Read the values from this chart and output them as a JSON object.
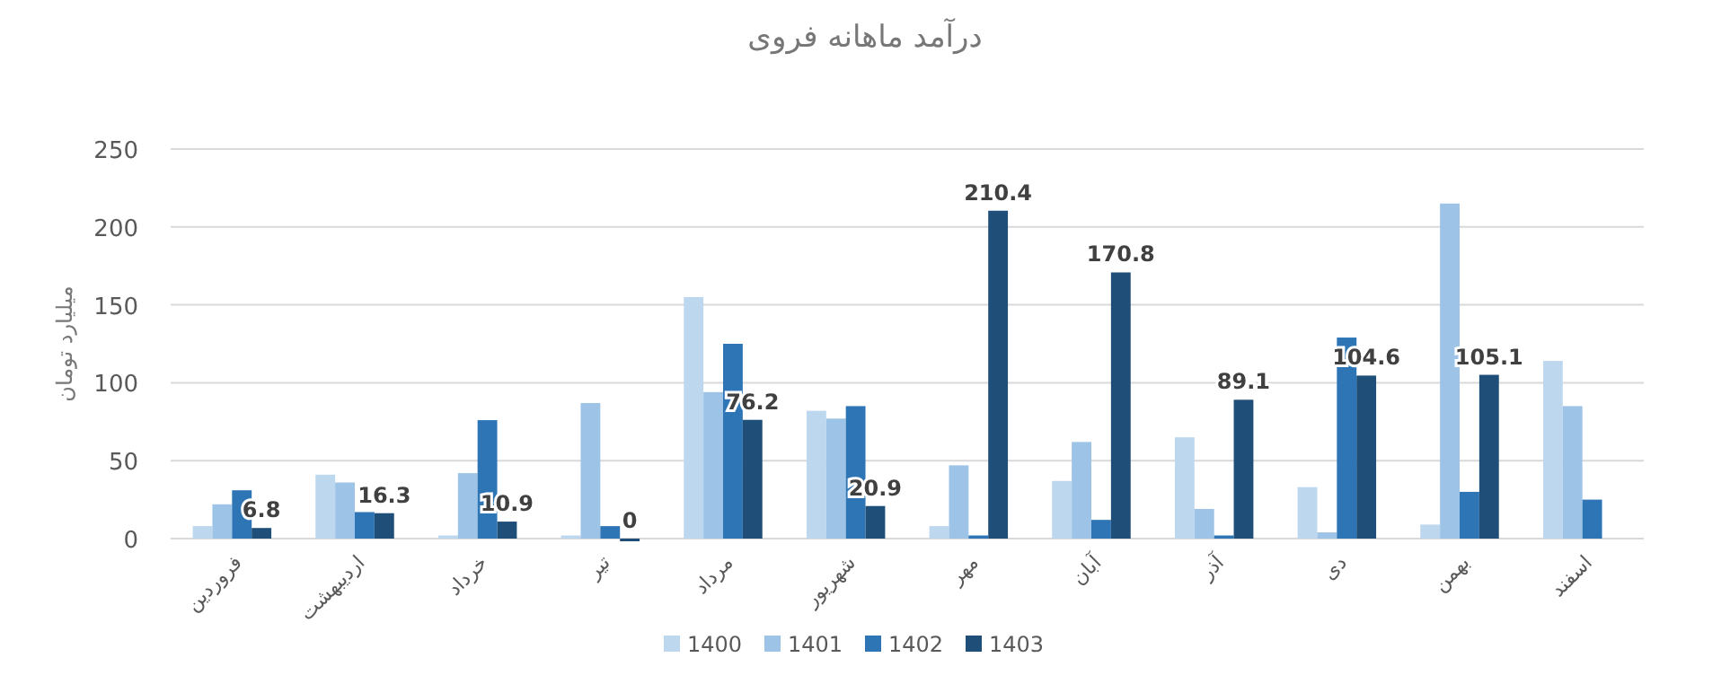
{
  "chart_data": {
    "type": "bar",
    "title": "درآمد ماهانه فروی",
    "ylabel": "میلیارد تومان",
    "categories": [
      "فروردین",
      "اردیبهشت",
      "خرداد",
      "تیر",
      "مرداد",
      "شهریور",
      "مهر",
      "آبان",
      "آذر",
      "دی",
      "بهمن",
      "اسفند"
    ],
    "series": [
      {
        "name": "1400",
        "color": "#bdd7ee",
        "values": [
          8,
          41,
          2,
          2,
          155,
          82,
          8,
          37,
          65,
          33,
          9,
          114
        ]
      },
      {
        "name": "1401",
        "color": "#9dc3e6",
        "values": [
          22,
          36,
          42,
          87,
          94,
          77,
          47,
          62,
          19,
          4,
          215,
          85
        ]
      },
      {
        "name": "1402",
        "color": "#2e75b6",
        "values": [
          31,
          17,
          76,
          8,
          125,
          85,
          2,
          12,
          2,
          129,
          30,
          25
        ]
      },
      {
        "name": "1403",
        "color": "#1f4e79",
        "values": [
          6.8,
          16.3,
          10.9,
          0,
          76.2,
          20.9,
          210.4,
          170.8,
          89.1,
          104.6,
          105.1,
          null
        ],
        "value_labels": [
          "6.8",
          "16.3",
          "10.9",
          "0",
          "76.2",
          "20.9",
          "210.4",
          "170.8",
          "89.1",
          "104.6",
          "105.1",
          null
        ]
      }
    ],
    "ylim": [
      0,
      250
    ],
    "yticks": [
      0,
      50,
      100,
      150,
      200,
      250
    ],
    "grid": "y",
    "legend": "bottom"
  }
}
